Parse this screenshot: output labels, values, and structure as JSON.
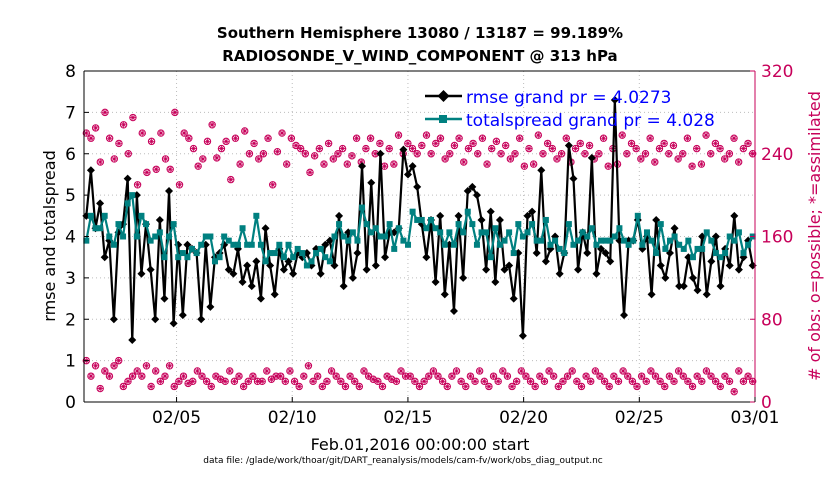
{
  "chart_data": {
    "type": "line",
    "title_line1": "Southern Hemisphere 13080 / 13187 = 99.189%",
    "title_line2": "RADIOSONDE_V_WIND_COMPONENT @ 313 hPa",
    "xlabel": "Feb.01,2016 00:00:00 start",
    "ylabel_left": "rmse and totalspread",
    "ylabel_right": "# of obs: o=possible; *=assimilated",
    "footnote": "data file: /glade/work/thoar/git/DART_reanalysis/models/cam-fv/work/obs_diag_output.nc",
    "x_unit": "days since Feb.01,2016 00:00",
    "x_range": [
      0,
      29
    ],
    "xticks": [
      4,
      9,
      14,
      19,
      24,
      29
    ],
    "xtick_labels": [
      "02/05",
      "02/10",
      "02/15",
      "02/20",
      "02/25",
      "03/01"
    ],
    "ylim_left": [
      0,
      8
    ],
    "yticks_left": [
      0,
      1,
      2,
      3,
      4,
      5,
      6,
      7,
      8
    ],
    "ylim_right": [
      0,
      320
    ],
    "yticks_right": [
      0,
      80,
      160,
      240,
      320
    ],
    "colors": {
      "rmse": "#000000",
      "spread": "#008080",
      "obs": "#c7005a",
      "legend_text": "#0000ff",
      "right_axis": "#c7005a"
    },
    "legend": {
      "placement": "top-right",
      "rmse_label": "rmse grand pr = 4.0273",
      "spread_label": "totalspread grand pr = 4.028"
    },
    "series": [
      {
        "name": "rmse grand pr = 4.0273",
        "values": [
          4.5,
          5.6,
          4.2,
          4.8,
          3.5,
          3.9,
          2.0,
          4.1,
          4.3,
          5.4,
          1.5,
          5.0,
          3.1,
          4.3,
          3.2,
          2.0,
          4.4,
          2.5,
          5.1,
          1.9,
          3.8,
          2.1,
          3.8,
          3.7,
          3.6,
          2.0,
          3.8,
          2.3,
          3.5,
          3.6,
          3.8,
          3.2,
          3.1,
          3.7,
          2.9,
          3.3,
          2.8,
          3.4,
          2.5,
          4.2,
          3.3,
          2.6,
          3.7,
          3.2,
          3.4,
          3.1,
          3.6,
          3.5,
          3.6,
          3.3,
          3.7,
          3.1,
          3.8,
          3.9,
          3.3,
          4.5,
          2.8,
          4.1,
          3.0,
          3.6,
          5.7,
          3.2,
          5.3,
          3.3,
          6.0,
          3.5,
          4.1,
          4.1,
          4.2,
          6.1,
          5.5,
          5.7,
          5.2,
          4.3,
          3.5,
          4.4,
          2.9,
          4.5,
          2.6,
          3.8,
          2.2,
          4.5,
          3.0,
          5.1,
          5.2,
          5.0,
          4.4,
          3.2,
          4.6,
          2.9,
          4.4,
          3.2,
          3.3,
          2.5,
          3.6,
          1.6,
          4.5,
          4.6,
          3.6,
          5.6,
          3.4,
          3.7,
          4.0,
          3.1,
          3.6,
          6.2,
          5.4,
          3.2,
          4.1,
          3.6,
          5.9,
          3.1,
          3.7,
          3.6,
          3.4,
          7.3,
          3.9,
          2.1,
          3.9,
          3.9,
          4.4,
          3.7,
          4.0,
          2.6,
          4.4,
          3.3,
          3.0,
          3.6,
          4.2,
          2.8,
          2.8,
          3.5,
          3.0,
          2.7,
          4.0,
          2.6,
          3.4,
          4.0,
          2.8,
          3.7,
          3.3,
          4.5,
          3.2,
          3.5,
          3.9,
          3.3
        ]
      },
      {
        "name": "totalspread grand pr = 4.028",
        "values": [
          3.9,
          4.5,
          4.2,
          4.2,
          4.5,
          4.0,
          3.8,
          4.3,
          4.0,
          4.8,
          5.0,
          4.0,
          4.5,
          4.3,
          3.9,
          4.0,
          4.1,
          3.5,
          4.0,
          4.3,
          3.5,
          3.6,
          3.5,
          3.7,
          3.6,
          3.8,
          4.0,
          4.0,
          3.4,
          3.5,
          4.0,
          3.9,
          3.8,
          3.8,
          4.2,
          3.8,
          3.8,
          4.5,
          3.8,
          3.4,
          3.6,
          3.6,
          3.8,
          3.5,
          3.8,
          3.5,
          3.7,
          3.6,
          3.3,
          3.4,
          3.6,
          3.7,
          3.5,
          3.4,
          4.0,
          4.3,
          4.0,
          3.9,
          4.1,
          3.9,
          4.7,
          4.3,
          4.1,
          4.2,
          4.0,
          4.0,
          4.3,
          3.7,
          4.2,
          3.9,
          3.8,
          4.6,
          4.4,
          4.4,
          4.2,
          4.4,
          4.2,
          4.1,
          3.8,
          4.1,
          3.8,
          4.3,
          4.1,
          4.6,
          4.3,
          3.8,
          4.1,
          4.1,
          3.5,
          4.2,
          3.8,
          3.9,
          4.1,
          3.6,
          4.3,
          4.0,
          4.1,
          4.3,
          3.9,
          3.9,
          4.4,
          3.8,
          3.9,
          3.7,
          3.6,
          4.3,
          3.8,
          3.9,
          4.1,
          4.0,
          4.2,
          3.8,
          3.9,
          3.9,
          3.9,
          4.0,
          4.2,
          3.9,
          3.8,
          3.9,
          4.5,
          3.8,
          4.1,
          3.9,
          3.6,
          4.3,
          3.7,
          3.9,
          4.0,
          3.8,
          3.7,
          3.9,
          3.5,
          3.7,
          3.7,
          4.1,
          3.9,
          3.6,
          3.5,
          3.6,
          4.0,
          3.9,
          4.1,
          3.6,
          3.8,
          4.0
        ]
      }
    ],
    "obs_possible_values": [
      40,
      25,
      35,
      13,
      30,
      25,
      35,
      40,
      15,
      20,
      25,
      30,
      25,
      35,
      15,
      30,
      20,
      25,
      35,
      15,
      20,
      25,
      18,
      20,
      30,
      25,
      20,
      15,
      25,
      22,
      20,
      30,
      20,
      25,
      15,
      20,
      25,
      20,
      20,
      30,
      22,
      25,
      25,
      20,
      30,
      20,
      15,
      25,
      35,
      20,
      25,
      15,
      20,
      30,
      25,
      20,
      15,
      25,
      20,
      15,
      30,
      25,
      22,
      20,
      15,
      25,
      22,
      20,
      30,
      25,
      25,
      20,
      15,
      20,
      25,
      30,
      25,
      20,
      15,
      25,
      30,
      20,
      15,
      25,
      20,
      30,
      20,
      15,
      25,
      20,
      30,
      25,
      15,
      20,
      30,
      25,
      20,
      15,
      25,
      20,
      30,
      25,
      15,
      20,
      25,
      30,
      20,
      15,
      25,
      20,
      30,
      25,
      20,
      15,
      25,
      20,
      30,
      25,
      20,
      15,
      25,
      20,
      30,
      25,
      20,
      15,
      25,
      20,
      30,
      25,
      20,
      15,
      25,
      20,
      30,
      25,
      20,
      15,
      25,
      20,
      10,
      30,
      20,
      25,
      20
    ],
    "obs_possible_high": [
      260,
      255,
      265,
      232,
      280,
      255,
      235,
      250,
      268,
      240,
      275,
      210,
      260,
      222,
      252,
      225,
      260,
      235,
      225,
      280,
      210,
      260,
      255,
      245,
      228,
      235,
      252,
      268,
      236,
      245,
      252,
      215,
      255,
      230,
      262,
      240,
      250,
      235,
      240,
      255,
      210,
      242,
      260,
      230,
      255,
      248,
      245,
      240,
      222,
      238,
      245,
      230,
      250,
      235,
      240,
      245,
      230,
      238,
      255,
      232,
      245,
      255,
      240,
      250,
      228,
      245,
      230,
      258,
      240,
      250,
      245,
      240,
      248,
      258,
      240,
      250,
      255,
      235,
      240,
      248,
      255,
      232,
      245,
      250,
      240,
      255,
      230,
      245,
      252,
      240,
      248,
      235,
      240,
      255,
      228,
      245,
      230,
      258,
      240,
      250,
      245,
      235,
      240,
      255,
      232,
      245,
      250,
      240,
      248,
      235,
      240,
      255,
      228,
      245,
      230,
      258,
      240,
      250,
      245,
      235,
      240,
      255,
      232,
      245,
      250,
      240,
      248,
      235,
      240,
      255,
      228,
      245,
      230,
      258,
      240,
      250,
      245,
      235,
      240,
      255,
      232,
      245,
      250,
      240
    ]
  }
}
